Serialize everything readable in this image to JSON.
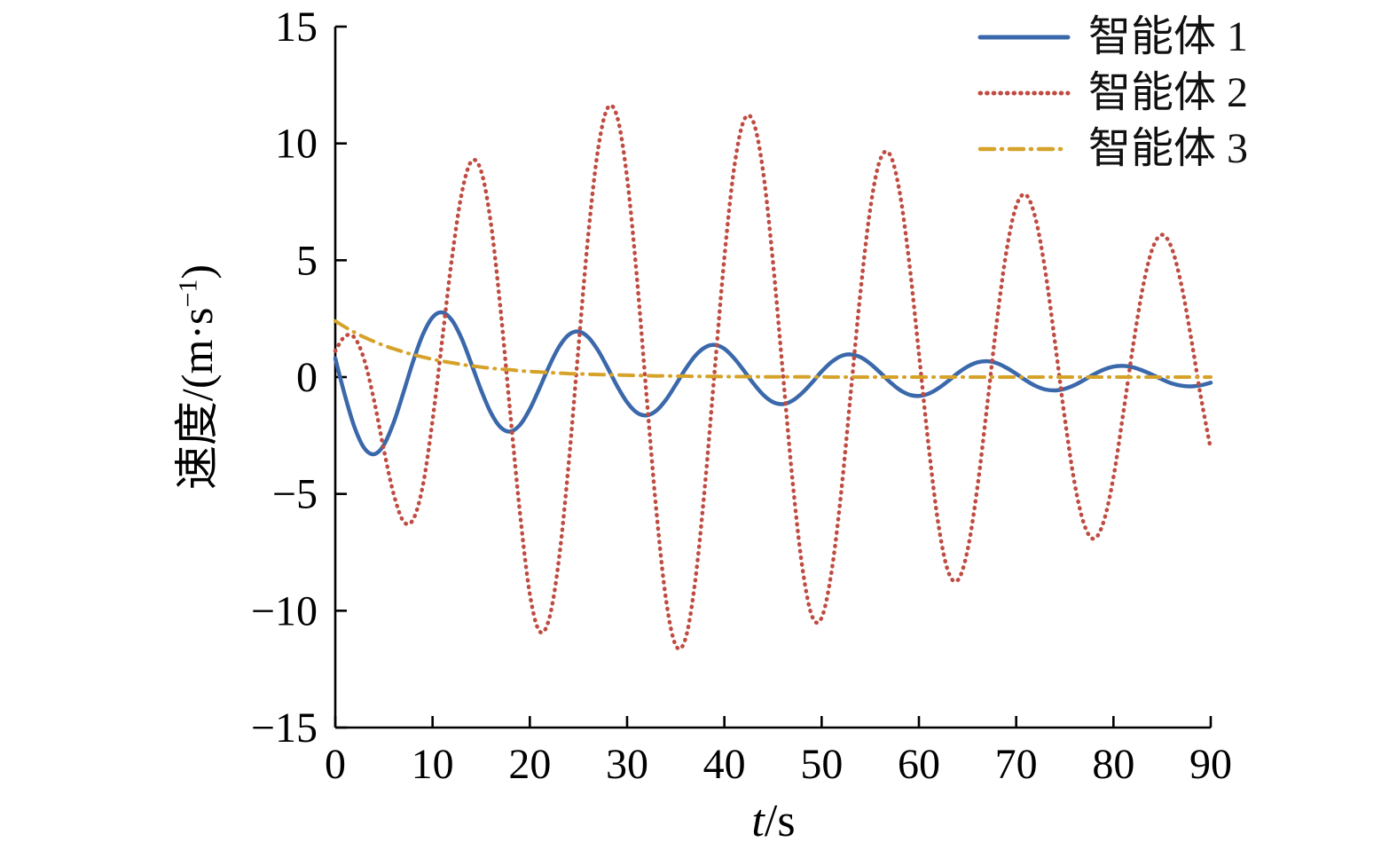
{
  "figure": {
    "background": "#ffffff",
    "y_axis_title": {
      "prefix": "速度/(m·s",
      "sup": "−1",
      "suffix": ")"
    },
    "x_axis_title": {
      "var": "t",
      "rest": "/s"
    }
  },
  "chart_data": {
    "type": "line",
    "title": "",
    "xlabel": "t/s",
    "ylabel": "速度/(m·s−1)",
    "xlim": [
      0,
      90
    ],
    "ylim": [
      -15,
      15
    ],
    "grid": false,
    "legend_position": "top-right-inside",
    "x_ticks": {
      "values": [
        0,
        10,
        20,
        30,
        40,
        50,
        60,
        70,
        80,
        90
      ],
      "labels": [
        "0",
        "10",
        "20",
        "30",
        "40",
        "50",
        "60",
        "70",
        "80",
        "90"
      ]
    },
    "y_ticks": {
      "values": [
        -15,
        -10,
        -5,
        0,
        5,
        10,
        15
      ],
      "labels": [
        "−15",
        "−10",
        "−5",
        "0",
        "5",
        "10",
        "15"
      ]
    },
    "x_start": 0,
    "x_step": 1,
    "series": [
      {
        "name": "智能体 1",
        "color": "#3a68aa",
        "style": "solid",
        "width": 4.5,
        "values": [
          0.8,
          -0.8,
          -2.17,
          -3.05,
          -3.3,
          -2.9,
          -1.95,
          -0.67,
          0.67,
          1.82,
          2.56,
          2.77,
          2.43,
          1.64,
          0.56,
          -0.57,
          -1.53,
          -2.15,
          -2.33,
          -2.04,
          -1.37,
          -0.47,
          0.48,
          1.29,
          1.81,
          1.95,
          1.71,
          1.15,
          0.4,
          -0.4,
          -1.08,
          -1.52,
          -1.64,
          -1.44,
          -0.97,
          -0.33,
          0.34,
          0.91,
          1.27,
          1.38,
          1.21,
          0.81,
          0.28,
          -0.28,
          -0.76,
          -1.07,
          -1.16,
          -1.01,
          -0.68,
          -0.24,
          0.24,
          0.64,
          0.9,
          0.97,
          0.85,
          0.57,
          0.2,
          -0.2,
          -0.54,
          -0.75,
          -0.81,
          -0.71,
          -0.48,
          -0.17,
          0.17,
          0.45,
          0.63,
          0.68,
          0.6,
          0.4,
          0.14,
          -0.14,
          -0.38,
          -0.53,
          -0.57,
          -0.5,
          -0.34,
          -0.12,
          0.12,
          0.32,
          0.45,
          0.48,
          0.42,
          0.28,
          0.1,
          -0.1,
          -0.27,
          -0.37,
          -0.4,
          -0.35,
          -0.24
        ]
      },
      {
        "name": "智能体 2",
        "color": "#bf4b41",
        "style": "dotted",
        "width": 4.5,
        "values": [
          1.12,
          1.75,
          1.68,
          0.71,
          -1.03,
          -3.12,
          -5.0,
          -6.17,
          -6.1,
          -4.65,
          -1.85,
          1.61,
          5.11,
          7.87,
          9.24,
          8.81,
          6.57,
          2.86,
          -1.6,
          -5.88,
          -9.28,
          -10.88,
          -10.32,
          -7.78,
          -3.68,
          1.27,
          6.05,
          9.71,
          11.52,
          11.11,
          8.53,
          4.29,
          -0.78,
          -5.69,
          -9.52,
          -11.48,
          -11.2,
          -8.73,
          -4.67,
          0.26,
          5.12,
          8.93,
          10.98,
          10.9,
          8.75,
          4.91,
          0.23,
          -4.39,
          -8.1,
          -10.22,
          -10.3,
          -8.38,
          -4.96,
          -0.66,
          3.68,
          7.22,
          9.29,
          9.54,
          7.96,
          4.92,
          1.01,
          -2.97,
          -6.29,
          -8.31,
          -8.69,
          -7.41,
          -4.76,
          -1.27,
          2.34,
          5.39,
          7.32,
          7.8,
          6.77,
          4.51,
          1.46,
          -1.77,
          -4.53,
          -6.32,
          -6.92,
          -6.17,
          -4.29,
          -1.57,
          1.29,
          3.79,
          5.49,
          6.09,
          5.51,
          3.91,
          1.62,
          -0.88,
          -3.09
        ]
      },
      {
        "name": "智能体 3",
        "color": "#d6a229",
        "style": "dashdot",
        "width": 4,
        "values": [
          2.4,
          2.14,
          1.91,
          1.7,
          1.52,
          1.35,
          1.21,
          1.08,
          0.96,
          0.86,
          0.76,
          0.68,
          0.61,
          0.54,
          0.48,
          0.43,
          0.38,
          0.34,
          0.31,
          0.27,
          0.24,
          0.22,
          0.19,
          0.17,
          0.15,
          0.14,
          0.12,
          0.11,
          0.1,
          0.09,
          0.08,
          0.07,
          0.06,
          0.05,
          0.05,
          0.04,
          0.04,
          0.03,
          0.03,
          0.03,
          0.02,
          0.02,
          0.02,
          0.02,
          0.01,
          0.01,
          0.01,
          0.01,
          0.01,
          0.01,
          0.01,
          0.0,
          0.0,
          0.0,
          0.0,
          0.0,
          0.0,
          0.0,
          0.0,
          0.0,
          0.0,
          0.0,
          0.0,
          0.0,
          0.0,
          0.0,
          0.0,
          0.0,
          0.0,
          0.0,
          0.0,
          0.0,
          0.0,
          0.0,
          0.0,
          0.0,
          0.0,
          0.0,
          0.0,
          0.0,
          0.0,
          0.0,
          0.0,
          0.0,
          0.0,
          0.0,
          0.0,
          0.0,
          0.0,
          0.0,
          0.0
        ]
      }
    ]
  }
}
